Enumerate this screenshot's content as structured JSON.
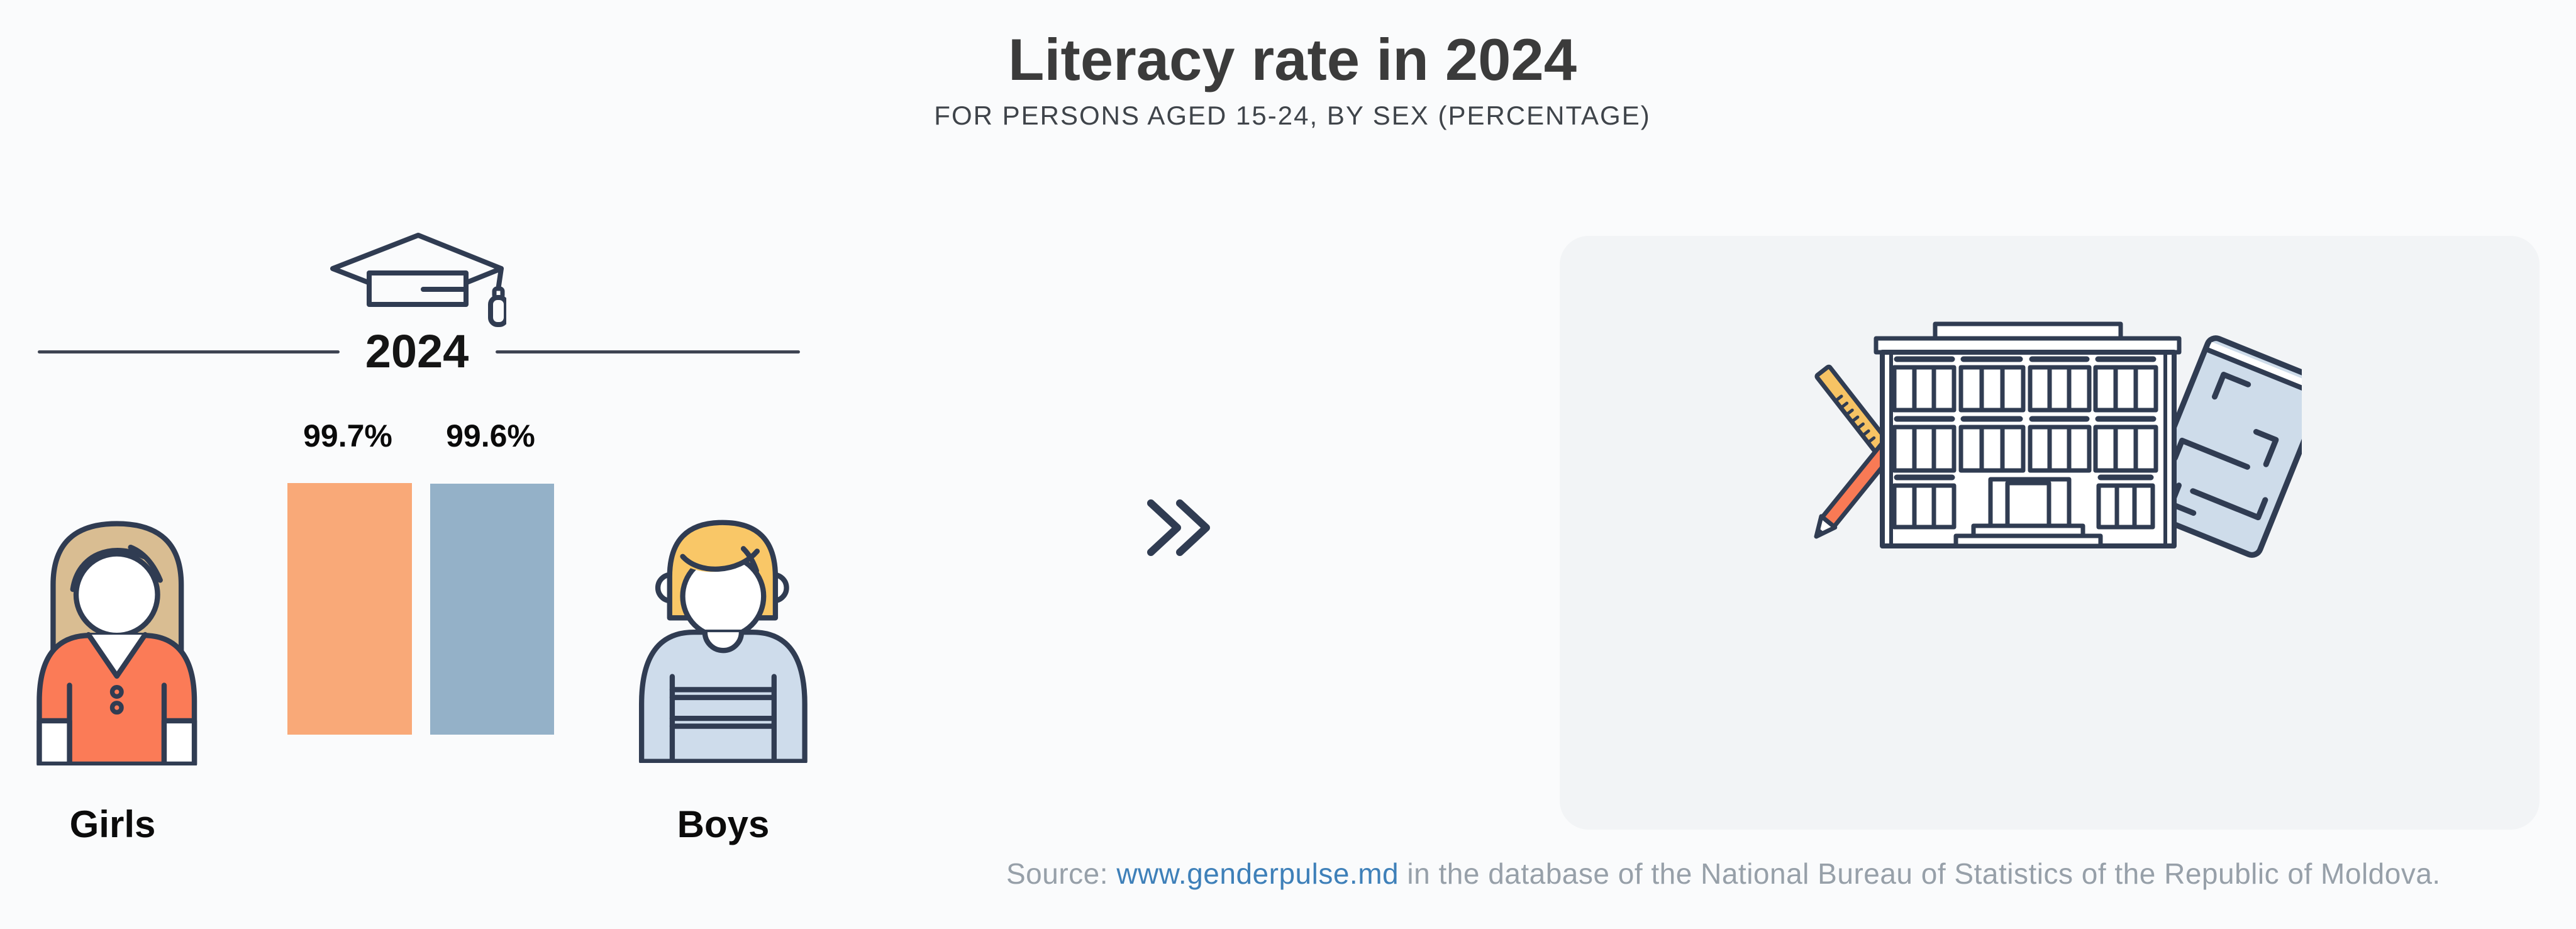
{
  "header": {
    "title": "Literacy rate in 2024",
    "subtitle": "FOR PERSONS AGED 15-24, BY SEX (PERCENTAGE)"
  },
  "chart_data": {
    "type": "bar",
    "title": "Literacy rate in 2024",
    "subtitle": "FOR PERSONS AGED 15-24, BY SEX (PERCENTAGE)",
    "period_label": "2024",
    "categories": [
      "Girls",
      "Boys"
    ],
    "values": [
      99.7,
      99.6
    ],
    "value_labels": [
      "99.7%",
      "99.6%"
    ],
    "bar_colors": [
      "#F9A978",
      "#94B1C8"
    ],
    "ylim": [
      0,
      100
    ],
    "grid": false,
    "legend_position": "none"
  },
  "footer": {
    "source_prefix": "Source: ",
    "source_link": "www.genderpulse.md",
    "source_suffix": " in the database of the National Bureau of Statistics of the Republic of Moldova."
  },
  "icons": {
    "graduation_cap": "graduation-cap-icon",
    "double_chevron": "double-chevron-right-icon",
    "girl_avatar": "girl-avatar",
    "boy_avatar": "boy-avatar",
    "school_building": "school-building-illustration",
    "ruler": "ruler-icon",
    "pencil": "pencil-icon",
    "tablet": "tablet-book-icon"
  },
  "colors": {
    "background": "#FAFBFC",
    "panel": "#F2F4F6",
    "outline_navy": "#303C52",
    "bar_girls": "#F9A978",
    "bar_boys": "#94B1C8",
    "girl_shirt": "#FB7B57",
    "girl_hair": "#D9BD92",
    "boy_hair": "#F9C767",
    "boy_sweater": "#CEDCEB",
    "ruler": "#F6C364",
    "pencil": "#F97A55",
    "tablet": "#CEDCEA",
    "title_text": "#3B3B3B",
    "subtitle_text": "#3F444A",
    "footer_text": "#97A0A9",
    "link": "#3E80B9"
  }
}
